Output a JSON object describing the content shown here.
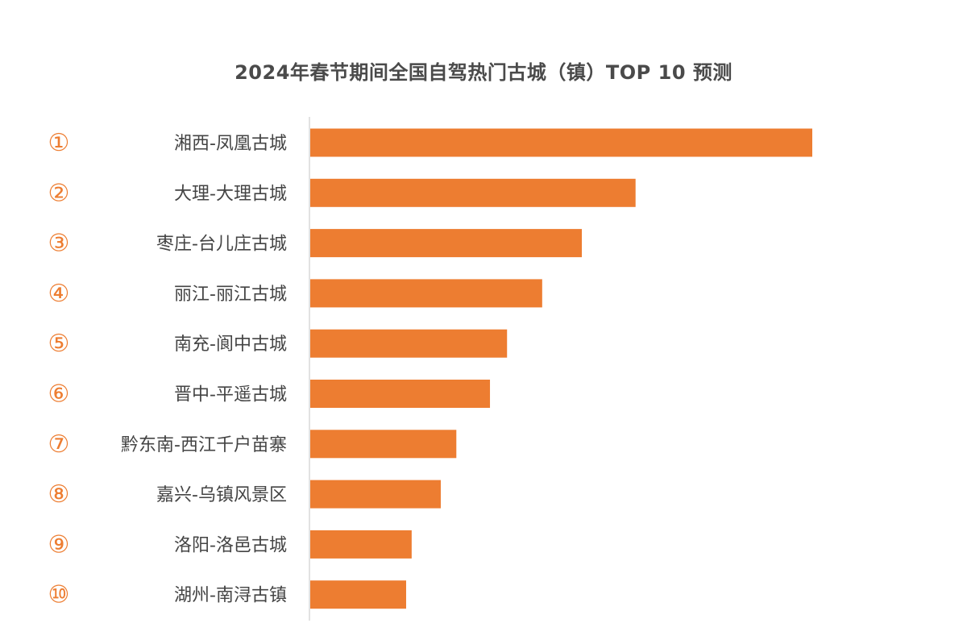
{
  "chart_data": {
    "type": "bar",
    "orientation": "horizontal",
    "title": "2024年春节期间全国自驾热门古城（镇）TOP 10 预测",
    "ranks": [
      "①",
      "②",
      "③",
      "④",
      "⑤",
      "⑥",
      "⑦",
      "⑧",
      "⑨",
      "⑩"
    ],
    "categories": [
      "湘西-凤凰古城",
      "大理-大理古城",
      "枣庄-台儿庄古城",
      "丽江-丽江古城",
      "南充-阆中古城",
      "晋中-平遥古城",
      "黔东南-西江千户苗寨",
      "嘉兴-乌镇风景区",
      "洛阳-洛邑古城",
      "湖州-南浔古镇"
    ],
    "values": [
      100,
      64.8,
      54.1,
      46.2,
      39.2,
      35.8,
      29.1,
      26.0,
      20.2,
      19.1
    ],
    "value_note_unit": "relative index (top = 100), no axis printed",
    "xlim": [
      0,
      100
    ],
    "grid": false,
    "legend": "none",
    "colors": {
      "bar": "#ED7D31",
      "rank": "#ED7D31",
      "label": "#444444",
      "title": "#4a4a4a",
      "axis": "#d9d9d9"
    }
  }
}
